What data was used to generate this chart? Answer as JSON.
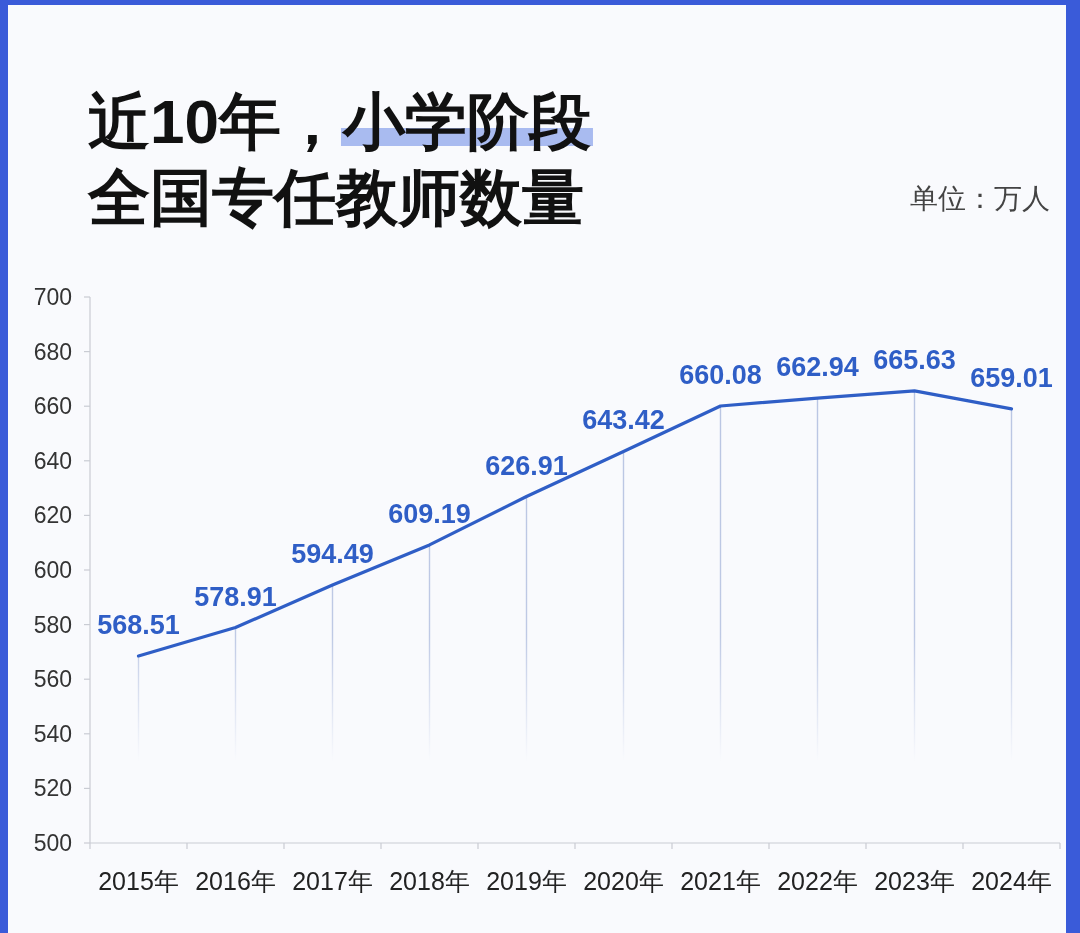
{
  "chart_data": {
    "type": "line",
    "title": "近10年，小学阶段全国专任教师数量",
    "annotations": [
      "单位：万人"
    ],
    "categories": [
      "2015年",
      "2016年",
      "2017年",
      "2018年",
      "2019年",
      "2020年",
      "2021年",
      "2022年",
      "2023年",
      "2024年"
    ],
    "series": [
      {
        "color": "#2f5ec6",
        "values": [
          568.51,
          578.91,
          594.49,
          609.19,
          626.91,
          643.42,
          660.08,
          662.94,
          665.63,
          659.01
        ]
      }
    ],
    "ylim": [
      500,
      700
    ],
    "yticks": [
      500,
      520,
      540,
      560,
      580,
      600,
      620,
      640,
      660,
      680,
      700
    ],
    "grid": "x",
    "data_labels": true,
    "marker": "none",
    "line_style": "solid"
  }
}
